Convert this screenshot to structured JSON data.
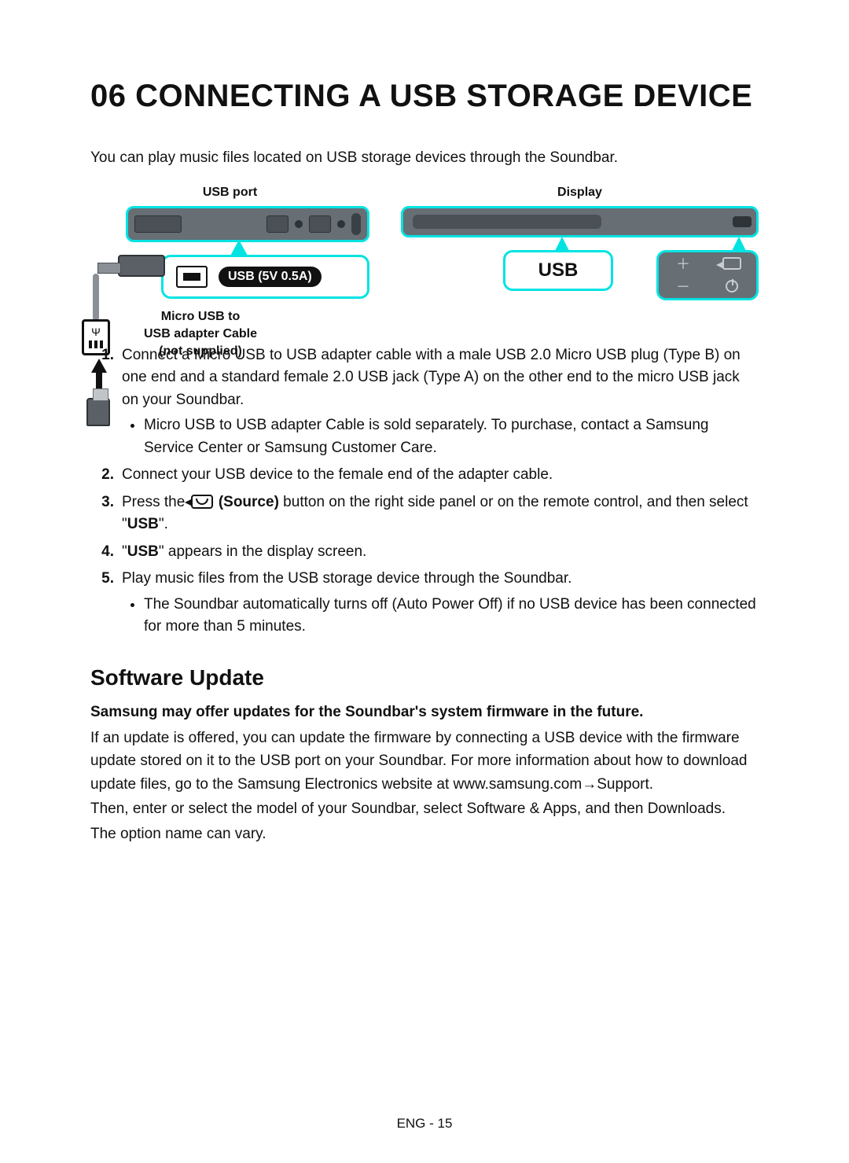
{
  "colors": {
    "cyan": "#00e3e3",
    "panel_gray": "#676e74",
    "black": "#111111",
    "white": "#ffffff"
  },
  "heading": "06   CONNECTING A USB STORAGE DEVICE",
  "intro": "You can play music files located on USB storage devices through the Soundbar.",
  "figure": {
    "left_label": "USB port",
    "right_label": "Display",
    "usb_badge": "USB (5V 0.5A)",
    "adapter_caption_l1": "Micro USB to",
    "adapter_caption_l2": "USB adapter Cable",
    "adapter_caption_l3": "(not supplied)",
    "display_text": "USB"
  },
  "steps": {
    "s1": {
      "num": "1.",
      "text": "Connect a Micro USB to USB adapter cable with a male USB 2.0 Micro USB plug (Type B) on one end and a standard female 2.0 USB jack (Type A) on the other end to the micro USB jack on your Soundbar.",
      "sub1": "Micro USB to USB adapter Cable is sold separately. To purchase, contact a Samsung Service Center or Samsung Customer Care."
    },
    "s2": {
      "num": "2.",
      "text": "Connect your USB device to the female end of the adapter cable."
    },
    "s3": {
      "num": "3.",
      "pre": "Press the ",
      "source_label": " (Source)",
      "post": " button on the right side panel or on the remote control, and then select \"",
      "kw": "USB",
      "post2": "\"."
    },
    "s4": {
      "num": "4.",
      "pre": "\"",
      "kw": "USB",
      "post": "\" appears in the display screen."
    },
    "s5": {
      "num": "5.",
      "text": "Play music files from the USB storage device through the Soundbar.",
      "sub1": "The Soundbar automatically turns off (Auto Power Off) if no USB device has been connected for more than 5 minutes."
    }
  },
  "section2": {
    "heading": "Software Update",
    "bold": "Samsung may offer updates for the Soundbar's system firmware in the future.",
    "p1": "If an update is offered, you can update the firmware by connecting a USB device with the firmware update stored on it to the USB port on your Soundbar. For more information about how to download update files, go to the Samsung Electronics website at www.samsung.com→Support.",
    "p2": "Then, enter or select the model of your Soundbar, select Software & Apps, and then Downloads.",
    "p3": "The option name can vary."
  },
  "footer": "ENG - 15"
}
